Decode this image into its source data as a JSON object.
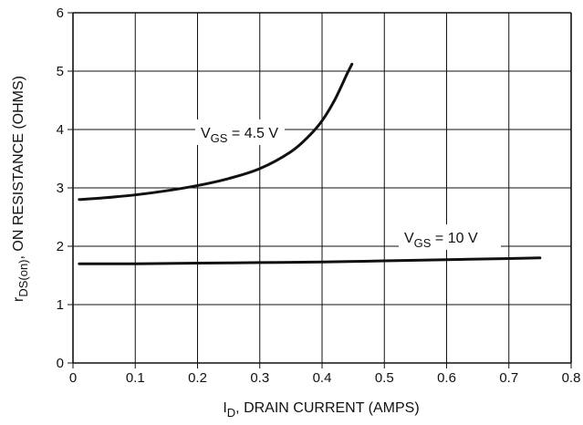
{
  "chart_data": {
    "type": "line",
    "xlabel": {
      "prefix": "I",
      "sub": "D",
      "rest": ", DRAIN CURRENT (AMPS)"
    },
    "ylabel": {
      "prefix": "r",
      "sub": "DS(on)",
      "rest": ", ON RESISTANCE (OHMS)"
    },
    "xlim": [
      0,
      0.8
    ],
    "ylim": [
      0,
      6
    ],
    "xticks": [
      "0",
      "0.1",
      "0.2",
      "0.3",
      "0.4",
      "0.5",
      "0.6",
      "0.7",
      "0.8"
    ],
    "yticks": [
      "0",
      "1",
      "2",
      "3",
      "4",
      "5",
      "6"
    ],
    "grid": true,
    "colors": {
      "curve": "#111111",
      "grid": "#111111",
      "background": "#ffffff"
    },
    "series": [
      {
        "label_prefix": "V",
        "label_sub": "GS",
        "label_value": " = 4.5 V",
        "x": [
          0.01,
          0.05,
          0.1,
          0.15,
          0.2,
          0.25,
          0.3,
          0.35,
          0.38,
          0.4,
          0.42,
          0.44,
          0.448
        ],
        "y": [
          2.8,
          2.83,
          2.88,
          2.95,
          3.04,
          3.16,
          3.33,
          3.62,
          3.9,
          4.15,
          4.5,
          4.95,
          5.12
        ]
      },
      {
        "label_prefix": "V",
        "label_sub": "GS",
        "label_value": " = 10 V",
        "x": [
          0.01,
          0.1,
          0.2,
          0.3,
          0.4,
          0.5,
          0.6,
          0.7,
          0.75
        ],
        "y": [
          1.7,
          1.7,
          1.71,
          1.72,
          1.73,
          1.75,
          1.77,
          1.79,
          1.8
        ]
      }
    ]
  }
}
